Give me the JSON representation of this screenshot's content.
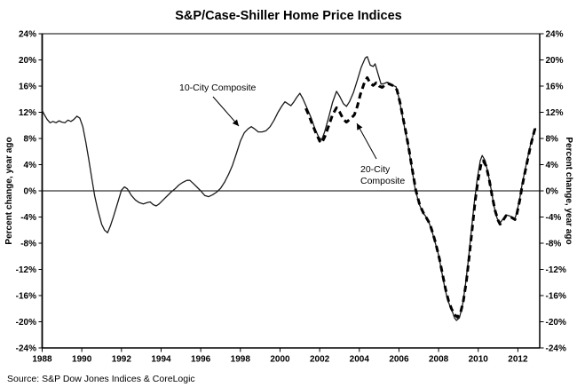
{
  "title": "S&P/Case-Shiller Home Price Indices",
  "source": "Source: S&P Dow Jones Indices & CoreLogic",
  "y_axis": {
    "title_left": "Percent change, year ago",
    "title_right": "Percent change, year ago",
    "tick_labels": [
      "24%",
      "20%",
      "16%",
      "12%",
      "8%",
      "4%",
      "0%",
      "-4%",
      "-8%",
      "-12%",
      "-16%",
      "-20%",
      "-24%"
    ],
    "tick_values": [
      24,
      20,
      16,
      12,
      8,
      4,
      0,
      -4,
      -8,
      -12,
      -16,
      -20,
      -24
    ]
  },
  "x_axis": {
    "tick_labels": [
      "1988",
      "1990",
      "1992",
      "1994",
      "1996",
      "1998",
      "2000",
      "2002",
      "2004",
      "2006",
      "2008",
      "2010",
      "2012"
    ],
    "tick_values": [
      1988,
      1990,
      1992,
      1994,
      1996,
      1998,
      2000,
      2002,
      2004,
      2006,
      2008,
      2010,
      2012
    ]
  },
  "annotations": {
    "series1_label": "10-City Composite",
    "series2_label_line1": "20-City",
    "series2_label_line2": "Composite"
  },
  "colors": {
    "line": "#000000",
    "background": "#ffffff",
    "frame_top": "#909090"
  },
  "chart_data": {
    "type": "line",
    "title": "S&P/Case-Shiller Home Price Indices",
    "xlabel": "",
    "ylabel": "Percent change, year ago",
    "ylim": [
      -24,
      24
    ],
    "xlim": [
      1988,
      2013.1
    ],
    "grid": false,
    "zero_line": true,
    "legend_position": "inline-annotations",
    "series": [
      {
        "name": "10-City Composite",
        "line_style": "solid",
        "points": [
          [
            1988,
            12.3
          ],
          [
            1988.1,
            11.7
          ],
          [
            1988.25,
            10.9
          ],
          [
            1988.4,
            10.4
          ],
          [
            1988.55,
            10.6
          ],
          [
            1988.7,
            10.4
          ],
          [
            1988.85,
            10.7
          ],
          [
            1989,
            10.5
          ],
          [
            1989.15,
            10.4
          ],
          [
            1989.3,
            10.8
          ],
          [
            1989.45,
            10.6
          ],
          [
            1989.6,
            10.9
          ],
          [
            1989.75,
            11.4
          ],
          [
            1989.9,
            11.1
          ],
          [
            1990.05,
            9.8
          ],
          [
            1990.2,
            7.5
          ],
          [
            1990.35,
            4.8
          ],
          [
            1990.5,
            2.0
          ],
          [
            1990.65,
            -0.8
          ],
          [
            1990.8,
            -2.8
          ],
          [
            1991,
            -5.1
          ],
          [
            1991.15,
            -6.0
          ],
          [
            1991.3,
            -6.4
          ],
          [
            1991.45,
            -5.3
          ],
          [
            1991.6,
            -3.9
          ],
          [
            1991.8,
            -1.9
          ],
          [
            1992,
            0.1
          ],
          [
            1992.15,
            0.6
          ],
          [
            1992.3,
            0.3
          ],
          [
            1992.5,
            -0.7
          ],
          [
            1992.7,
            -1.4
          ],
          [
            1992.9,
            -1.8
          ],
          [
            1993.1,
            -2.0
          ],
          [
            1993.3,
            -1.8
          ],
          [
            1993.45,
            -1.7
          ],
          [
            1993.6,
            -2.1
          ],
          [
            1993.75,
            -2.3
          ],
          [
            1993.9,
            -2.0
          ],
          [
            1994.1,
            -1.4
          ],
          [
            1994.3,
            -0.8
          ],
          [
            1994.5,
            -0.2
          ],
          [
            1994.7,
            0.3
          ],
          [
            1994.9,
            0.9
          ],
          [
            1995.1,
            1.3
          ],
          [
            1995.3,
            1.6
          ],
          [
            1995.45,
            1.6
          ],
          [
            1995.6,
            1.2
          ],
          [
            1995.8,
            0.6
          ],
          [
            1996,
            0.0
          ],
          [
            1996.2,
            -0.7
          ],
          [
            1996.4,
            -0.9
          ],
          [
            1996.6,
            -0.6
          ],
          [
            1996.8,
            -0.2
          ],
          [
            1997,
            0.4
          ],
          [
            1997.2,
            1.3
          ],
          [
            1997.4,
            2.5
          ],
          [
            1997.6,
            3.9
          ],
          [
            1997.8,
            5.7
          ],
          [
            1998,
            7.6
          ],
          [
            1998.2,
            8.9
          ],
          [
            1998.4,
            9.5
          ],
          [
            1998.55,
            9.8
          ],
          [
            1998.7,
            9.5
          ],
          [
            1998.9,
            9.0
          ],
          [
            1999.1,
            9.0
          ],
          [
            1999.3,
            9.2
          ],
          [
            1999.5,
            9.8
          ],
          [
            1999.7,
            10.8
          ],
          [
            1999.9,
            12.0
          ],
          [
            2000.1,
            13.0
          ],
          [
            2000.25,
            13.6
          ],
          [
            2000.4,
            13.3
          ],
          [
            2000.55,
            13.0
          ],
          [
            2000.7,
            13.6
          ],
          [
            2000.85,
            14.3
          ],
          [
            2001,
            14.9
          ],
          [
            2001.15,
            14.1
          ],
          [
            2001.35,
            12.7
          ],
          [
            2001.55,
            11.3
          ],
          [
            2001.75,
            9.6
          ],
          [
            2001.95,
            8.2
          ],
          [
            2002.1,
            7.8
          ],
          [
            2002.25,
            9.0
          ],
          [
            2002.45,
            11.2
          ],
          [
            2002.65,
            13.5
          ],
          [
            2002.85,
            15.2
          ],
          [
            2003,
            14.5
          ],
          [
            2003.2,
            13.3
          ],
          [
            2003.35,
            12.9
          ],
          [
            2003.5,
            13.6
          ],
          [
            2003.7,
            15.0
          ],
          [
            2003.9,
            16.9
          ],
          [
            2004.1,
            18.9
          ],
          [
            2004.3,
            20.3
          ],
          [
            2004.4,
            20.5
          ],
          [
            2004.55,
            19.2
          ],
          [
            2004.7,
            19.0
          ],
          [
            2004.8,
            19.4
          ],
          [
            2004.95,
            17.8
          ],
          [
            2005.1,
            16.3
          ],
          [
            2005.25,
            16.4
          ],
          [
            2005.4,
            16.6
          ],
          [
            2005.55,
            16.4
          ],
          [
            2005.7,
            16.1
          ],
          [
            2005.85,
            15.9
          ],
          [
            2006,
            14.2
          ],
          [
            2006.15,
            11.8
          ],
          [
            2006.3,
            9.4
          ],
          [
            2006.45,
            7.2
          ],
          [
            2006.6,
            4.4
          ],
          [
            2006.8,
            0.6
          ],
          [
            2007,
            -1.9
          ],
          [
            2007.2,
            -3.3
          ],
          [
            2007.35,
            -3.9
          ],
          [
            2007.5,
            -4.7
          ],
          [
            2007.65,
            -6.0
          ],
          [
            2007.8,
            -7.6
          ],
          [
            2008,
            -9.8
          ],
          [
            2008.15,
            -12.2
          ],
          [
            2008.3,
            -14.6
          ],
          [
            2008.45,
            -16.6
          ],
          [
            2008.6,
            -17.8
          ],
          [
            2008.7,
            -18.5
          ],
          [
            2008.8,
            -19.4
          ],
          [
            2008.9,
            -19.8
          ],
          [
            2009.05,
            -19.4
          ],
          [
            2009.2,
            -17.6
          ],
          [
            2009.35,
            -14.5
          ],
          [
            2009.5,
            -10.6
          ],
          [
            2009.65,
            -6.2
          ],
          [
            2009.8,
            -1.8
          ],
          [
            2009.95,
            1.8
          ],
          [
            2010.1,
            4.6
          ],
          [
            2010.2,
            5.4
          ],
          [
            2010.35,
            4.6
          ],
          [
            2010.5,
            2.6
          ],
          [
            2010.65,
            0.2
          ],
          [
            2010.8,
            -2.4
          ],
          [
            2010.95,
            -4.2
          ],
          [
            2011.1,
            -4.9
          ],
          [
            2011.25,
            -4.3
          ],
          [
            2011.4,
            -3.7
          ],
          [
            2011.55,
            -3.8
          ],
          [
            2011.7,
            -4.0
          ],
          [
            2011.85,
            -4.2
          ],
          [
            2011.95,
            -3.3
          ],
          [
            2012.1,
            -1.0
          ],
          [
            2012.2,
            0.8
          ],
          [
            2012.35,
            3.0
          ],
          [
            2012.5,
            5.2
          ],
          [
            2012.65,
            7.2
          ],
          [
            2012.8,
            8.9
          ],
          [
            2012.9,
            9.6
          ]
        ]
      },
      {
        "name": "20-City Composite",
        "line_style": "dashed",
        "points": [
          [
            2001.3,
            12.6
          ],
          [
            2001.45,
            11.6
          ],
          [
            2001.6,
            10.4
          ],
          [
            2001.8,
            8.9
          ],
          [
            2002,
            7.6
          ],
          [
            2002.1,
            7.3
          ],
          [
            2002.25,
            8.2
          ],
          [
            2002.45,
            9.9
          ],
          [
            2002.65,
            11.6
          ],
          [
            2002.85,
            12.7
          ],
          [
            2003,
            12.1
          ],
          [
            2003.2,
            10.9
          ],
          [
            2003.35,
            10.5
          ],
          [
            2003.55,
            11.0
          ],
          [
            2003.75,
            11.6
          ],
          [
            2003.9,
            12.9
          ],
          [
            2004.05,
            14.7
          ],
          [
            2004.25,
            16.5
          ],
          [
            2004.4,
            17.3
          ],
          [
            2004.55,
            16.4
          ],
          [
            2004.7,
            16.1
          ],
          [
            2004.85,
            16.5
          ],
          [
            2005,
            16.0
          ],
          [
            2005.15,
            15.8
          ],
          [
            2005.3,
            16.2
          ],
          [
            2005.45,
            16.4
          ],
          [
            2005.6,
            16.2
          ],
          [
            2005.75,
            16.0
          ],
          [
            2005.9,
            15.4
          ],
          [
            2006.05,
            13.5
          ],
          [
            2006.2,
            11.2
          ],
          [
            2006.35,
            8.9
          ],
          [
            2006.5,
            6.4
          ],
          [
            2006.65,
            3.6
          ],
          [
            2006.85,
            0.1
          ],
          [
            2007.05,
            -2.2
          ],
          [
            2007.25,
            -3.5
          ],
          [
            2007.4,
            -4.2
          ],
          [
            2007.55,
            -5.0
          ],
          [
            2007.7,
            -6.4
          ],
          [
            2007.85,
            -8.0
          ],
          [
            2008.05,
            -10.5
          ],
          [
            2008.2,
            -12.8
          ],
          [
            2008.35,
            -15.0
          ],
          [
            2008.5,
            -16.8
          ],
          [
            2008.65,
            -18.0
          ],
          [
            2008.8,
            -18.9
          ],
          [
            2008.95,
            -19.3
          ],
          [
            2009.1,
            -18.7
          ],
          [
            2009.25,
            -16.8
          ],
          [
            2009.4,
            -13.8
          ],
          [
            2009.55,
            -9.9
          ],
          [
            2009.7,
            -5.6
          ],
          [
            2009.85,
            -1.4
          ],
          [
            2010,
            1.9
          ],
          [
            2010.15,
            4.2
          ],
          [
            2010.25,
            4.6
          ],
          [
            2010.4,
            3.8
          ],
          [
            2010.55,
            1.8
          ],
          [
            2010.7,
            -0.8
          ],
          [
            2010.85,
            -3.0
          ],
          [
            2011,
            -4.5
          ],
          [
            2011.1,
            -5.1
          ],
          [
            2011.25,
            -4.5
          ],
          [
            2011.4,
            -3.8
          ],
          [
            2011.55,
            -3.9
          ],
          [
            2011.7,
            -4.1
          ],
          [
            2011.85,
            -4.4
          ],
          [
            2011.95,
            -3.5
          ],
          [
            2012.1,
            -1.3
          ],
          [
            2012.2,
            0.5
          ],
          [
            2012.35,
            2.7
          ],
          [
            2012.5,
            4.9
          ],
          [
            2012.65,
            7.0
          ],
          [
            2012.8,
            8.8
          ],
          [
            2012.9,
            9.9
          ]
        ]
      }
    ]
  }
}
